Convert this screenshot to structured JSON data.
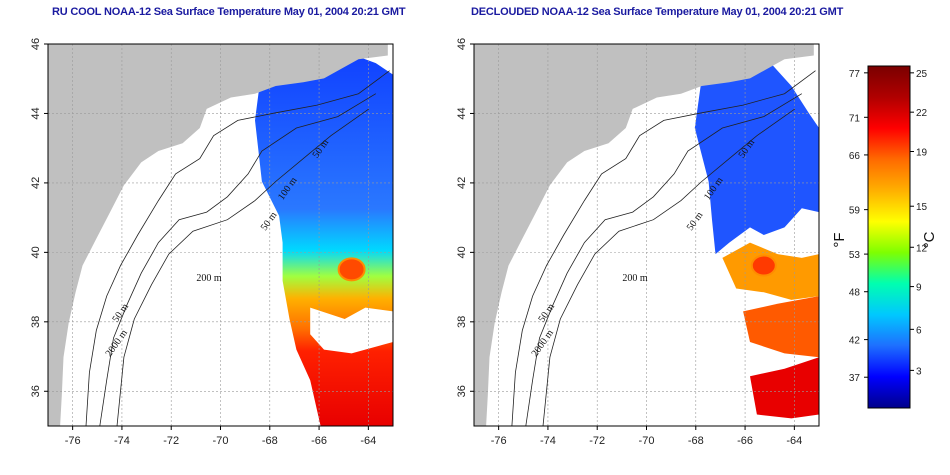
{
  "titles": {
    "left": "RU COOL NOAA-12 Sea Surface Temperature May 01, 2004 20:21 GMT",
    "right": "DECLOUDED NOAA-12 Sea Surface Temperature May 01, 2004 20:21 GMT"
  },
  "map": {
    "lon_range": [
      -77,
      -63
    ],
    "lat_range": [
      35,
      46
    ],
    "lon_ticks": [
      -76,
      -74,
      -72,
      -70,
      -68,
      -66,
      -64
    ],
    "lat_ticks": [
      36,
      38,
      40,
      42,
      44,
      46
    ],
    "land_color": "#c0c0c0",
    "contour_labels": [
      "50 m",
      "100 m",
      "50 m",
      "200 m",
      "50 m",
      "2000 m"
    ]
  },
  "colorbar": {
    "colors": [
      "#00008b",
      "#0000ff",
      "#1e6fff",
      "#00c8ff",
      "#00ffb0",
      "#7fff00",
      "#ffff00",
      "#ffb000",
      "#ff6a00",
      "#ff0000",
      "#b00000",
      "#7a0000"
    ],
    "fahrenheit_ticks": [
      "77",
      "71",
      "66",
      "59",
      "53",
      "48",
      "42",
      "37"
    ],
    "celsius_ticks": [
      "25",
      "22",
      "19",
      "15",
      "12",
      "9",
      "6",
      "3"
    ],
    "fahrenheit_unit": "°F",
    "celsius_unit": "°C"
  }
}
